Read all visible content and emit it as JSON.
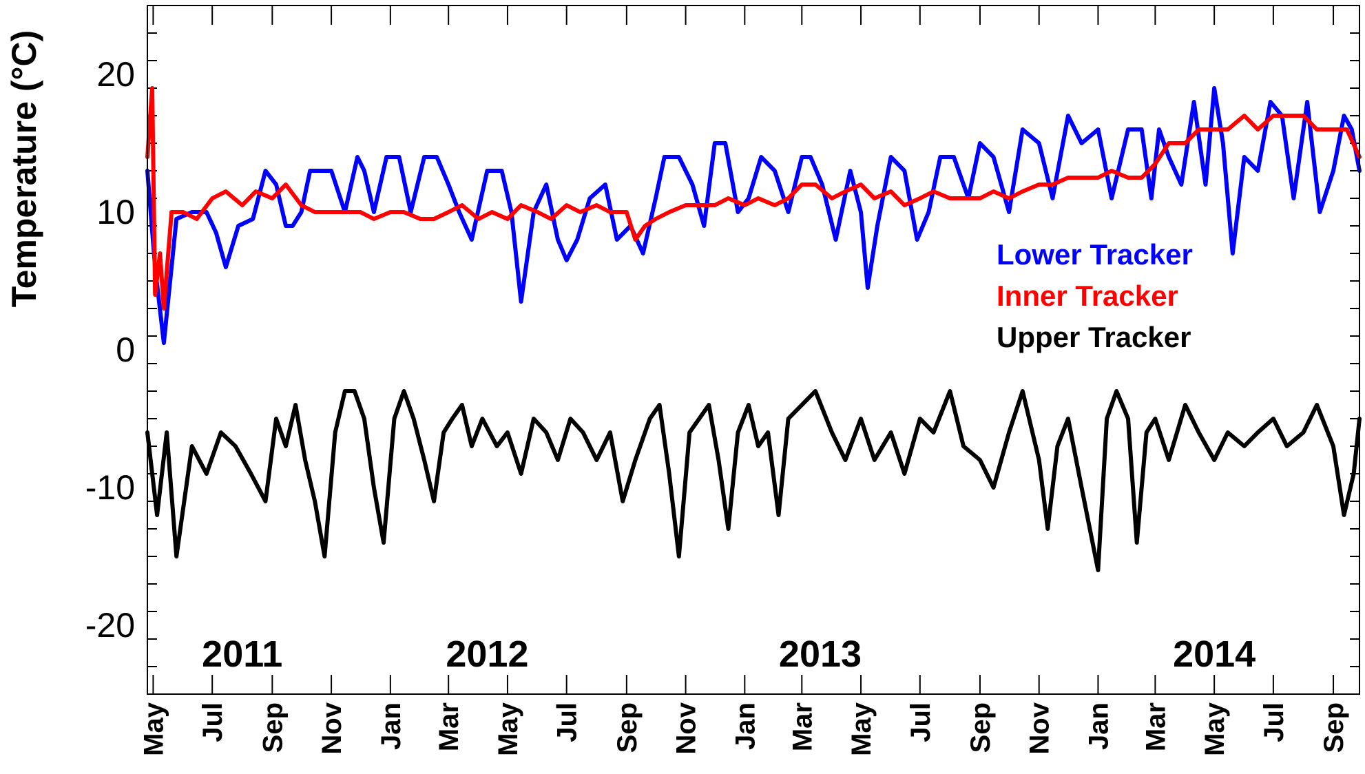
{
  "chart_data": {
    "type": "line",
    "ylabel": "Temperature (°C)",
    "ylim": [
      -25,
      25
    ],
    "xlim": [
      "2011-04-25",
      "2014-09-28"
    ],
    "grid": false,
    "legend_position": "right-center",
    "y_ticks": [
      20,
      10,
      0,
      -10,
      -20
    ],
    "year_labels": [
      {
        "text": "2011",
        "date": "2011-08-01"
      },
      {
        "text": "2012",
        "date": "2012-04-10"
      },
      {
        "text": "2013",
        "date": "2013-03-20"
      },
      {
        "text": "2014",
        "date": "2014-05-01"
      }
    ],
    "month_ticks": [
      {
        "label": "May",
        "date": "2011-05-01"
      },
      {
        "label": "Jul",
        "date": "2011-07-01"
      },
      {
        "label": "Sep",
        "date": "2011-09-01"
      },
      {
        "label": "Nov",
        "date": "2011-11-01"
      },
      {
        "label": "Jan",
        "date": "2012-01-01"
      },
      {
        "label": "Mar",
        "date": "2012-03-01"
      },
      {
        "label": "May",
        "date": "2012-05-01"
      },
      {
        "label": "Jul",
        "date": "2012-07-01"
      },
      {
        "label": "Sep",
        "date": "2012-09-01"
      },
      {
        "label": "Nov",
        "date": "2012-11-01"
      },
      {
        "label": "Jan",
        "date": "2013-01-01"
      },
      {
        "label": "Mar",
        "date": "2013-03-01"
      },
      {
        "label": "May",
        "date": "2013-05-01"
      },
      {
        "label": "Jul",
        "date": "2013-07-01"
      },
      {
        "label": "Sep",
        "date": "2013-09-01"
      },
      {
        "label": "Nov",
        "date": "2013-11-01"
      },
      {
        "label": "Jan",
        "date": "2014-01-01"
      },
      {
        "label": "Mar",
        "date": "2014-03-01"
      },
      {
        "label": "May",
        "date": "2014-05-01"
      },
      {
        "label": "Jul",
        "date": "2014-07-01"
      },
      {
        "label": "Sep",
        "date": "2014-09-01"
      }
    ],
    "series": [
      {
        "name": "Lower Tracker",
        "color": "#0000ff",
        "x": [
          "2011-04-25",
          "2011-05-03",
          "2011-05-12",
          "2011-05-25",
          "2011-06-10",
          "2011-06-25",
          "2011-07-05",
          "2011-07-15",
          "2011-07-28",
          "2011-08-12",
          "2011-08-25",
          "2011-09-05",
          "2011-09-15",
          "2011-09-22",
          "2011-10-01",
          "2011-10-10",
          "2011-10-20",
          "2011-11-01",
          "2011-11-15",
          "2011-11-28",
          "2011-12-05",
          "2011-12-15",
          "2011-12-28",
          "2012-01-10",
          "2012-01-22",
          "2012-02-05",
          "2012-02-18",
          "2012-03-01",
          "2012-03-12",
          "2012-03-25",
          "2012-04-10",
          "2012-04-25",
          "2012-05-05",
          "2012-05-15",
          "2012-05-28",
          "2012-06-10",
          "2012-06-22",
          "2012-07-01",
          "2012-07-12",
          "2012-07-25",
          "2012-08-10",
          "2012-08-22",
          "2012-09-05",
          "2012-09-18",
          "2012-10-01",
          "2012-10-10",
          "2012-10-25",
          "2012-11-08",
          "2012-11-20",
          "2012-12-01",
          "2012-12-12",
          "2012-12-25",
          "2013-01-05",
          "2013-01-18",
          "2013-02-01",
          "2013-02-15",
          "2013-03-01",
          "2013-03-10",
          "2013-03-22",
          "2013-04-05",
          "2013-04-20",
          "2013-05-01",
          "2013-05-08",
          "2013-05-18",
          "2013-06-01",
          "2013-06-15",
          "2013-06-28",
          "2013-07-10",
          "2013-07-22",
          "2013-08-05",
          "2013-08-20",
          "2013-09-01",
          "2013-09-15",
          "2013-10-01",
          "2013-10-15",
          "2013-11-01",
          "2013-11-15",
          "2013-12-01",
          "2013-12-15",
          "2014-01-01",
          "2014-01-15",
          "2014-02-01",
          "2014-02-15",
          "2014-02-25",
          "2014-03-05",
          "2014-03-15",
          "2014-03-28",
          "2014-04-10",
          "2014-04-22",
          "2014-05-01",
          "2014-05-10",
          "2014-05-20",
          "2014-06-01",
          "2014-06-15",
          "2014-06-28",
          "2014-07-10",
          "2014-07-22",
          "2014-08-05",
          "2014-08-18",
          "2014-09-01",
          "2014-09-12",
          "2014-09-20",
          "2014-09-28"
        ],
        "values": [
          13,
          6,
          0.5,
          9.5,
          10,
          10,
          8.5,
          6,
          9,
          9.5,
          13,
          12,
          9,
          9,
          10,
          13,
          13,
          13,
          10,
          14,
          13,
          10,
          14,
          14,
          10,
          14,
          14,
          12,
          10,
          8,
          13,
          13,
          10,
          3.5,
          10,
          12,
          8,
          6.5,
          8,
          11,
          12,
          8,
          9,
          7,
          11,
          14,
          14,
          12,
          9,
          15,
          15,
          10,
          11,
          14,
          13,
          10,
          14,
          14,
          12,
          8,
          13,
          10,
          4.5,
          9,
          14,
          13,
          8,
          10,
          14,
          14,
          11,
          15,
          14,
          10,
          16,
          15,
          11,
          17,
          15,
          16,
          11,
          16,
          16,
          11,
          16,
          14,
          12,
          18,
          12,
          19,
          15,
          7,
          14,
          13,
          18,
          17,
          11,
          18,
          10,
          13,
          17,
          16,
          13
        ]
      },
      {
        "name": "Inner Tracker",
        "color": "#ff0000",
        "x": [
          "2011-04-25",
          "2011-04-30",
          "2011-05-03",
          "2011-05-08",
          "2011-05-12",
          "2011-05-20",
          "2011-06-01",
          "2011-06-15",
          "2011-07-01",
          "2011-07-15",
          "2011-08-01",
          "2011-08-15",
          "2011-09-01",
          "2011-09-15",
          "2011-10-01",
          "2011-10-15",
          "2011-11-01",
          "2011-11-15",
          "2011-12-01",
          "2011-12-15",
          "2012-01-01",
          "2012-01-15",
          "2012-02-01",
          "2012-02-15",
          "2012-03-01",
          "2012-03-15",
          "2012-04-01",
          "2012-04-15",
          "2012-05-01",
          "2012-05-15",
          "2012-06-01",
          "2012-06-15",
          "2012-07-01",
          "2012-07-15",
          "2012-08-01",
          "2012-08-15",
          "2012-09-01",
          "2012-09-10",
          "2012-09-20",
          "2012-10-01",
          "2012-10-15",
          "2012-11-01",
          "2012-11-15",
          "2012-12-01",
          "2012-12-15",
          "2013-01-01",
          "2013-01-15",
          "2013-02-01",
          "2013-02-15",
          "2013-03-01",
          "2013-03-15",
          "2013-04-01",
          "2013-04-15",
          "2013-05-01",
          "2013-05-15",
          "2013-06-01",
          "2013-06-15",
          "2013-07-01",
          "2013-07-15",
          "2013-08-01",
          "2013-08-15",
          "2013-09-01",
          "2013-09-15",
          "2013-10-01",
          "2013-10-15",
          "2013-11-01",
          "2013-11-15",
          "2013-12-01",
          "2013-12-15",
          "2014-01-01",
          "2014-01-15",
          "2014-02-01",
          "2014-02-15",
          "2014-03-01",
          "2014-03-15",
          "2014-04-01",
          "2014-04-15",
          "2014-05-01",
          "2014-05-15",
          "2014-06-01",
          "2014-06-15",
          "2014-07-01",
          "2014-07-15",
          "2014-08-01",
          "2014-08-15",
          "2014-09-01",
          "2014-09-15",
          "2014-09-28"
        ],
        "values": [
          14,
          19,
          4,
          7,
          3,
          10,
          10,
          9.5,
          11,
          11.5,
          10.5,
          11.5,
          11,
          12,
          10.5,
          10,
          10,
          10,
          10,
          9.5,
          10,
          10,
          9.5,
          9.5,
          10,
          10.5,
          9.5,
          10,
          9.5,
          10.5,
          10,
          9.5,
          10.5,
          10,
          10.5,
          10,
          10,
          8,
          9,
          9.5,
          10,
          10.5,
          10.5,
          10.5,
          11,
          10.5,
          11,
          10.5,
          11,
          12,
          12,
          11,
          11.5,
          12,
          11,
          11.5,
          10.5,
          11,
          11.5,
          11,
          11,
          11,
          11.5,
          11,
          11.5,
          12,
          12,
          12.5,
          12.5,
          12.5,
          13,
          12.5,
          12.5,
          13.5,
          15,
          15,
          16,
          16,
          16,
          17,
          16,
          17,
          17,
          17,
          16,
          16,
          16,
          14
        ]
      },
      {
        "name": "Upper Tracker",
        "color": "#000000",
        "x": [
          "2011-04-25",
          "2011-05-05",
          "2011-05-15",
          "2011-05-25",
          "2011-06-10",
          "2011-06-25",
          "2011-07-10",
          "2011-07-25",
          "2011-08-10",
          "2011-08-25",
          "2011-09-05",
          "2011-09-15",
          "2011-09-25",
          "2011-10-05",
          "2011-10-15",
          "2011-10-25",
          "2011-11-05",
          "2011-11-15",
          "2011-11-25",
          "2011-12-05",
          "2011-12-15",
          "2011-12-25",
          "2012-01-05",
          "2012-01-15",
          "2012-01-25",
          "2012-02-05",
          "2012-02-15",
          "2012-02-25",
          "2012-03-05",
          "2012-03-15",
          "2012-03-25",
          "2012-04-05",
          "2012-04-20",
          "2012-05-01",
          "2012-05-15",
          "2012-05-28",
          "2012-06-10",
          "2012-06-22",
          "2012-07-05",
          "2012-07-18",
          "2012-08-01",
          "2012-08-15",
          "2012-08-28",
          "2012-09-10",
          "2012-09-25",
          "2012-10-05",
          "2012-10-15",
          "2012-10-25",
          "2012-11-05",
          "2012-11-15",
          "2012-11-25",
          "2012-12-05",
          "2012-12-15",
          "2012-12-25",
          "2013-01-05",
          "2013-01-15",
          "2013-01-25",
          "2013-02-05",
          "2013-02-15",
          "2013-03-01",
          "2013-03-15",
          "2013-04-01",
          "2013-04-15",
          "2013-05-01",
          "2013-05-15",
          "2013-06-01",
          "2013-06-15",
          "2013-07-01",
          "2013-07-15",
          "2013-08-01",
          "2013-08-15",
          "2013-09-01",
          "2013-09-15",
          "2013-10-01",
          "2013-10-15",
          "2013-11-01",
          "2013-11-10",
          "2013-11-20",
          "2013-12-01",
          "2013-12-15",
          "2014-01-01",
          "2014-01-10",
          "2014-01-20",
          "2014-02-01",
          "2014-02-10",
          "2014-02-20",
          "2014-03-01",
          "2014-03-15",
          "2014-04-01",
          "2014-04-15",
          "2014-05-01",
          "2014-05-15",
          "2014-06-01",
          "2014-06-15",
          "2014-07-01",
          "2014-07-15",
          "2014-08-01",
          "2014-08-15",
          "2014-09-01",
          "2014-09-12",
          "2014-09-22",
          "2014-09-28"
        ],
        "values": [
          -6,
          -12,
          -6,
          -15,
          -7,
          -9,
          -6,
          -7,
          -9,
          -11,
          -5,
          -7,
          -4,
          -8,
          -11,
          -15,
          -6,
          -3,
          -3,
          -5,
          -10,
          -14,
          -5,
          -3,
          -5,
          -8,
          -11,
          -6,
          -5,
          -4,
          -7,
          -5,
          -7,
          -6,
          -9,
          -5,
          -6,
          -8,
          -5,
          -6,
          -8,
          -6,
          -11,
          -8,
          -5,
          -4,
          -9,
          -15,
          -6,
          -5,
          -4,
          -8,
          -13,
          -6,
          -4,
          -7,
          -6,
          -12,
          -5,
          -4,
          -3,
          -6,
          -8,
          -5,
          -8,
          -6,
          -9,
          -5,
          -6,
          -3,
          -7,
          -8,
          -10,
          -6,
          -3,
          -8,
          -13,
          -7,
          -5,
          -10,
          -16,
          -5,
          -3,
          -5,
          -14,
          -6,
          -5,
          -8,
          -4,
          -6,
          -8,
          -6,
          -7,
          -6,
          -5,
          -7,
          -6,
          -4,
          -7,
          -12,
          -9,
          -5
        ]
      }
    ]
  }
}
